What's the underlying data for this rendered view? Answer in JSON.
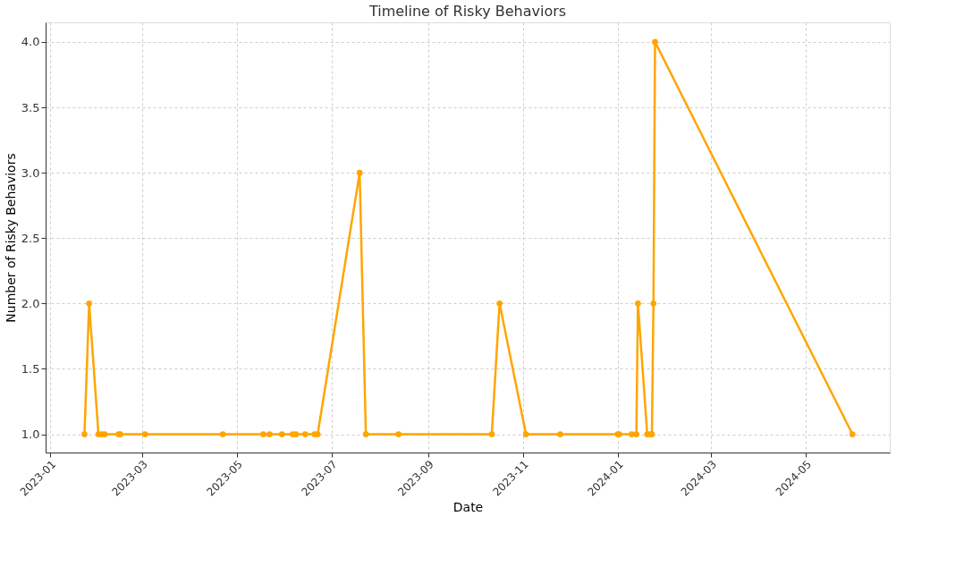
{
  "chart_data": {
    "type": "line",
    "title": "Timeline of Risky Behaviors",
    "xlabel": "Date",
    "ylabel": "Number of Risky Behaviors",
    "x": [
      "2023-01-23",
      "2023-01-26",
      "2023-02-01",
      "2023-02-03",
      "2023-02-05",
      "2023-02-14",
      "2023-02-15",
      "2023-03-03",
      "2023-04-22",
      "2023-05-18",
      "2023-05-22",
      "2023-05-30",
      "2023-06-06",
      "2023-06-08",
      "2023-06-14",
      "2023-06-20",
      "2023-06-22",
      "2023-07-19",
      "2023-07-23",
      "2023-08-13",
      "2023-10-12",
      "2023-10-17",
      "2023-11-03",
      "2023-11-25",
      "2024-01-01",
      "2024-01-02",
      "2024-01-10",
      "2024-01-13",
      "2024-01-14",
      "2024-01-20",
      "2024-01-22",
      "2024-01-23",
      "2024-01-24",
      "2024-01-25",
      "2024-05-31"
    ],
    "series": [
      {
        "color": "#ffa500",
        "values": [
          1,
          2,
          1,
          1,
          1,
          1,
          1,
          1,
          1,
          1,
          1,
          1,
          1,
          1,
          1,
          1,
          1,
          3,
          1,
          1,
          1,
          2,
          1,
          1,
          1,
          1,
          1,
          1,
          2,
          1,
          1,
          1,
          2,
          4,
          1
        ]
      }
    ],
    "xlim": [
      "2022-12-29",
      "2024-06-24"
    ],
    "xticks": [
      {
        "value": "2023-01-01",
        "label": "2023-01"
      },
      {
        "value": "2023-03-01",
        "label": "2023-03"
      },
      {
        "value": "2023-05-01",
        "label": "2023-05"
      },
      {
        "value": "2023-07-01",
        "label": "2023-07"
      },
      {
        "value": "2023-09-01",
        "label": "2023-09"
      },
      {
        "value": "2023-11-01",
        "label": "2023-11"
      },
      {
        "value": "2024-01-01",
        "label": "2024-01"
      },
      {
        "value": "2024-03-01",
        "label": "2024-03"
      },
      {
        "value": "2024-05-01",
        "label": "2024-05"
      }
    ],
    "ylim": [
      0.86,
      4.15
    ],
    "yticks": [
      {
        "value": 1,
        "label": "1.0"
      },
      {
        "value": 1.5,
        "label": "1.5"
      },
      {
        "value": 2,
        "label": "2.0"
      },
      {
        "value": 2.5,
        "label": "2.5"
      },
      {
        "value": 3,
        "label": "3.0"
      },
      {
        "value": 3.5,
        "label": "3.5"
      },
      {
        "value": 4,
        "label": "4.0"
      }
    ],
    "grid": true,
    "marker": "circle",
    "line_style": "solid"
  }
}
